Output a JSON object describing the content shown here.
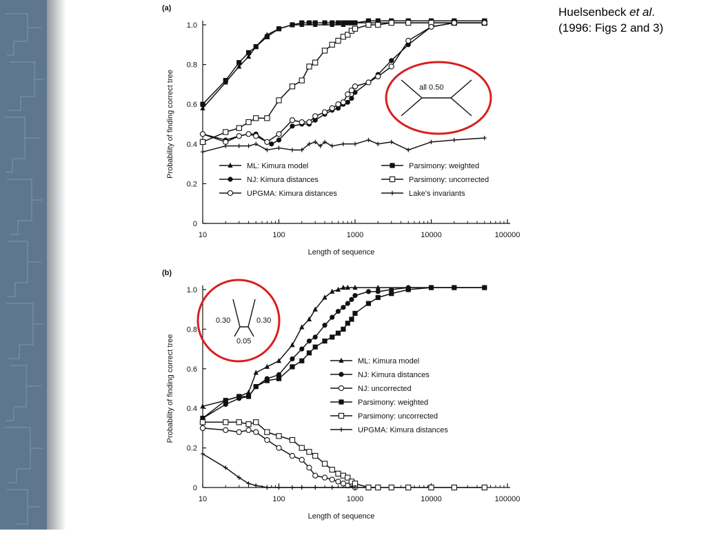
{
  "citation": {
    "line1_prefix": "Huelsenbeck ",
    "line1_italic": "et al",
    "line1_suffix": ".",
    "line2": "(1996: Figs 2 and 3)"
  },
  "colors": {
    "sidebar": "#5e7690",
    "circle": "#d81e1e",
    "ink": "#111111"
  },
  "chart_data": [
    {
      "type": "line",
      "panel_label": "(a)",
      "xlabel": "Length of sequence",
      "ylabel": "Probability of finding correct tree",
      "xscale": "log",
      "xlim": [
        10,
        100000
      ],
      "ylim": [
        0,
        1.0
      ],
      "xticks": [
        "10",
        "100",
        "1000",
        "10000",
        "100000"
      ],
      "yticks": [
        "0",
        "0.2",
        "0.4",
        "0.6",
        "0.8",
        "1.0"
      ],
      "tree_label": "all 0.50",
      "legend_position": "lower-center",
      "series": [
        {
          "name": "ML: Kimura model",
          "marker": "triangle",
          "x": [
            10,
            20,
            30,
            40,
            50,
            70,
            100,
            150,
            200,
            300,
            500,
            700,
            1000,
            2000,
            5000,
            10000,
            20000,
            50000
          ],
          "y": [
            0.58,
            0.71,
            0.79,
            0.84,
            0.89,
            0.95,
            0.98,
            1.0,
            1.0,
            1.0,
            1.0,
            1.0,
            1.01,
            1.01,
            1.01,
            1.01,
            1.01,
            1.01
          ]
        },
        {
          "name": "Parsimony: weighted",
          "marker": "square",
          "x": [
            10,
            20,
            30,
            40,
            50,
            70,
            100,
            150,
            200,
            250,
            300,
            400,
            500,
            600,
            700,
            800,
            900,
            1000,
            1500,
            2000,
            3000,
            5000,
            10000,
            20000,
            50000
          ],
          "y": [
            0.6,
            0.72,
            0.81,
            0.86,
            0.89,
            0.94,
            0.98,
            1.0,
            1.01,
            1.01,
            1.01,
            1.01,
            1.01,
            1.01,
            1.01,
            1.01,
            1.01,
            1.01,
            1.02,
            1.02,
            1.02,
            1.02,
            1.02,
            1.02,
            1.02
          ]
        },
        {
          "name": "NJ: Kimura distances",
          "marker": "circle",
          "x": [
            10,
            20,
            30,
            40,
            50,
            70,
            80,
            100,
            150,
            200,
            250,
            300,
            400,
            500,
            600,
            700,
            800,
            900,
            1000,
            1500,
            2000,
            3000,
            5000,
            10000,
            20000,
            50000
          ],
          "y": [
            0.45,
            0.42,
            0.44,
            0.45,
            0.45,
            0.41,
            0.4,
            0.42,
            0.49,
            0.5,
            0.5,
            0.52,
            0.55,
            0.57,
            0.58,
            0.6,
            0.61,
            0.63,
            0.66,
            0.71,
            0.75,
            0.82,
            0.9,
            0.99,
            1.01,
            1.01
          ]
        },
        {
          "name": "Parsimony: uncorrected",
          "marker": "open-square",
          "x": [
            10,
            20,
            30,
            40,
            50,
            70,
            100,
            150,
            200,
            250,
            300,
            400,
            500,
            600,
            700,
            800,
            900,
            1000,
            1500,
            2000,
            3000,
            5000,
            10000,
            20000,
            50000
          ],
          "y": [
            0.41,
            0.46,
            0.48,
            0.51,
            0.53,
            0.53,
            0.62,
            0.69,
            0.72,
            0.79,
            0.81,
            0.87,
            0.9,
            0.92,
            0.94,
            0.95,
            0.97,
            0.98,
            1.0,
            1.0,
            1.01,
            1.01,
            1.01,
            1.01,
            1.01
          ]
        },
        {
          "name": "UPGMA: Kimura distances",
          "marker": "open-circle",
          "x": [
            10,
            20,
            30,
            40,
            50,
            70,
            100,
            150,
            200,
            250,
            300,
            400,
            500,
            600,
            700,
            800,
            900,
            1000,
            1500,
            2000,
            3000,
            5000,
            10000,
            20000,
            50000
          ],
          "y": [
            0.45,
            0.41,
            0.44,
            0.45,
            0.44,
            0.41,
            0.45,
            0.52,
            0.51,
            0.51,
            0.54,
            0.56,
            0.58,
            0.6,
            0.61,
            0.65,
            0.67,
            0.69,
            0.71,
            0.74,
            0.79,
            0.92,
            0.99,
            1.01,
            1.01
          ]
        },
        {
          "name": "Lake's invariants",
          "marker": "plus",
          "x": [
            10,
            20,
            30,
            40,
            50,
            70,
            100,
            150,
            200,
            250,
            300,
            350,
            400,
            500,
            700,
            1000,
            1500,
            2000,
            3000,
            5000,
            10000,
            20000,
            50000
          ],
          "y": [
            0.36,
            0.39,
            0.39,
            0.39,
            0.4,
            0.37,
            0.38,
            0.37,
            0.37,
            0.4,
            0.41,
            0.39,
            0.41,
            0.39,
            0.4,
            0.4,
            0.42,
            0.4,
            0.41,
            0.37,
            0.41,
            0.42,
            0.43
          ]
        }
      ]
    },
    {
      "type": "line",
      "panel_label": "(b)",
      "xlabel": "Length of sequence",
      "ylabel": "Probability of finding correct tree",
      "xscale": "log",
      "xlim": [
        10,
        100000
      ],
      "ylim": [
        0,
        1.0
      ],
      "xticks": [
        "10",
        "100",
        "1000",
        "10000",
        "100000"
      ],
      "yticks": [
        "0",
        "0.2",
        "0.4",
        "0.6",
        "0.8",
        "1.0"
      ],
      "tree_labels": [
        "0.30",
        "0.30",
        "0.05"
      ],
      "legend_position": "center-right",
      "series": [
        {
          "name": "ML: Kimura model",
          "marker": "triangle",
          "x": [
            10,
            20,
            30,
            40,
            50,
            70,
            100,
            150,
            200,
            250,
            300,
            400,
            500,
            600,
            700,
            800,
            1000,
            2000,
            5000,
            10000,
            20000,
            50000
          ],
          "y": [
            0.41,
            0.44,
            0.46,
            0.48,
            0.58,
            0.61,
            0.64,
            0.72,
            0.81,
            0.85,
            0.9,
            0.96,
            0.99,
            1.0,
            1.01,
            1.01,
            1.01,
            1.01,
            1.01,
            1.01,
            1.01,
            1.01
          ]
        },
        {
          "name": "NJ: Kimura distances",
          "marker": "circle",
          "x": [
            10,
            20,
            30,
            40,
            50,
            70,
            100,
            150,
            200,
            250,
            300,
            400,
            500,
            600,
            700,
            800,
            900,
            1000,
            1500,
            2000,
            3000,
            5000,
            10000,
            20000,
            50000
          ],
          "y": [
            0.35,
            0.42,
            0.45,
            0.46,
            0.51,
            0.55,
            0.57,
            0.65,
            0.7,
            0.74,
            0.76,
            0.82,
            0.86,
            0.89,
            0.91,
            0.93,
            0.95,
            0.97,
            0.99,
            0.99,
            1.0,
            1.01,
            1.01,
            1.01,
            1.01
          ]
        },
        {
          "name": "NJ: uncorrected",
          "marker": "open-circle",
          "x": [
            10,
            20,
            30,
            40,
            50,
            70,
            100,
            150,
            200,
            250,
            300,
            400,
            500,
            600,
            700,
            800,
            1000,
            1500,
            2000
          ],
          "y": [
            0.3,
            0.29,
            0.28,
            0.29,
            0.28,
            0.24,
            0.2,
            0.16,
            0.14,
            0.1,
            0.06,
            0.05,
            0.04,
            0.03,
            0.02,
            0.01,
            0.0,
            0.0,
            0.0
          ]
        },
        {
          "name": "Parsimony: weighted",
          "marker": "square",
          "x": [
            10,
            20,
            30,
            40,
            50,
            70,
            100,
            150,
            200,
            250,
            300,
            400,
            500,
            600,
            700,
            800,
            900,
            1000,
            1500,
            2000,
            3000,
            5000,
            10000,
            20000,
            50000
          ],
          "y": [
            0.35,
            0.44,
            0.46,
            0.46,
            0.51,
            0.54,
            0.55,
            0.61,
            0.64,
            0.68,
            0.71,
            0.74,
            0.76,
            0.78,
            0.8,
            0.83,
            0.85,
            0.88,
            0.93,
            0.96,
            0.98,
            1.0,
            1.01,
            1.01,
            1.01
          ]
        },
        {
          "name": "Parsimony: uncorrected",
          "marker": "open-square",
          "x": [
            10,
            20,
            30,
            40,
            50,
            70,
            100,
            150,
            200,
            250,
            300,
            400,
            500,
            600,
            700,
            800,
            900,
            1000,
            1500,
            2000,
            3000,
            5000,
            10000,
            20000,
            50000
          ],
          "y": [
            0.33,
            0.33,
            0.33,
            0.32,
            0.33,
            0.28,
            0.26,
            0.24,
            0.2,
            0.18,
            0.16,
            0.12,
            0.09,
            0.07,
            0.06,
            0.05,
            0.03,
            0.02,
            0.0,
            0.0,
            0.0,
            0.0,
            0.0,
            0.0,
            0.0
          ]
        },
        {
          "name": "UPGMA: Kimura distances",
          "marker": "plus",
          "x": [
            10,
            20,
            30,
            40,
            50,
            70,
            100,
            150,
            200,
            300,
            500,
            1000
          ],
          "y": [
            0.17,
            0.1,
            0.05,
            0.02,
            0.01,
            0.0,
            0.0,
            0.0,
            0.0,
            0.0,
            0.0,
            0.0
          ]
        }
      ]
    }
  ]
}
